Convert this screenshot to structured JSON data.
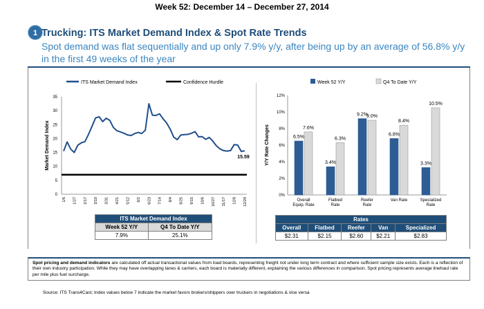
{
  "header": {
    "week": "Week 52: December 14 – December 27, 2014",
    "badge": "1",
    "title": "Trucking: ITS Market Demand Index & Spot Rate Trends",
    "subtitle": "Spot demand was flat sequentially and up only 7.9% y/y, after being up by an average of 56.8% y/y in the first 49 weeks of the year"
  },
  "colors": {
    "navy": "#1f4e79",
    "bar_blue": "#2e5c94",
    "bar_gray": "#d9d9d9",
    "line_blue": "#1f4e8c"
  },
  "chart_data": [
    {
      "type": "line",
      "ylabel": "Market Demand Index",
      "ylim": [
        0,
        35
      ],
      "yticks": [
        "0",
        "5",
        "10",
        "15",
        "20",
        "25",
        "30",
        "35"
      ],
      "x_tick_labels": [
        "1/6",
        "1/27",
        "2/17",
        "3/10",
        "3/31",
        "4/21",
        "5/12",
        "6/2",
        "6/23",
        "7/14",
        "8/4",
        "8/25",
        "9/15",
        "10/6",
        "10/27",
        "11/17",
        "12/8",
        "12/29"
      ],
      "series": [
        {
          "name": "ITS Market Demand Index",
          "values": [
            15.5,
            18.8,
            16.2,
            15.0,
            17.6,
            18.5,
            18.9,
            21.5,
            24.4,
            27.4,
            27.8,
            26.1,
            27.3,
            26.5,
            24.0,
            22.8,
            22.4,
            21.9,
            21.3,
            21.1,
            21.8,
            22.2,
            21.8,
            23.0,
            32.5,
            28.4,
            28.3,
            28.9,
            27.1,
            25.6,
            23.4,
            20.5,
            19.6,
            21.3,
            21.4,
            21.5,
            21.9,
            22.5,
            20.6,
            20.7,
            19.7,
            20.4,
            19.1,
            17.4,
            16.3,
            15.7,
            15.5,
            15.7,
            17.8,
            17.7,
            15.4,
            15.59
          ]
        },
        {
          "name": "Confidence Hurdle",
          "values": [
            7,
            7
          ]
        }
      ],
      "end_label": "15.59"
    },
    {
      "type": "bar",
      "ylabel": "Y/Y Rate Changes",
      "ylim": [
        0,
        12
      ],
      "yticks": [
        "0%",
        "2%",
        "4%",
        "6%",
        "8%",
        "10%",
        "12%"
      ],
      "categories": [
        [
          "Overall",
          "Equip. Rate"
        ],
        [
          "Flatbed",
          "Rate"
        ],
        [
          "Reefer",
          "Rate"
        ],
        [
          "Van Rate"
        ],
        [
          "Specialized",
          "Rate"
        ]
      ],
      "series": [
        {
          "name": "Week 52 Y/Y",
          "values": [
            6.5,
            3.4,
            9.2,
            6.8,
            3.3
          ],
          "labels": [
            "6.5%",
            "3.4%",
            "9.2%",
            "6.8%",
            "3.3%"
          ]
        },
        {
          "name": "Q4 To Date Y/Y",
          "values": [
            7.6,
            6.3,
            9.0,
            8.4,
            10.5
          ],
          "labels": [
            "7.6%",
            "6.3%",
            "9.0%",
            "8.4%",
            "10.5%"
          ]
        }
      ]
    }
  ],
  "index_table": {
    "title": "ITS Market Demand Index",
    "headers": [
      "Week 52 Y/Y",
      "Q4 To Date Y/Y"
    ],
    "values": [
      "7.9%",
      "25.1%"
    ]
  },
  "rates_table": {
    "title": "Rates",
    "headers": [
      "Overall",
      "Flatbed",
      "Reefer",
      "Van",
      "Specialized"
    ],
    "values": [
      "$2.31",
      "$2.15",
      "$2.60",
      "$2.21",
      "$2.83"
    ]
  },
  "notes": {
    "bold": "Spot pricing and demand indicators",
    "text": " are calculated off actual transactional values from load boards, representing freight not under long term contract and where sufficient sample size exists. Each is a reflection of their own industry participation. While they may have overlapping lanes & carriers, each board is materially different, explaining the various differences in comparison. Spot pricing represents average linehaul rate per mile plus fuel surcharge."
  },
  "source": "Source: ITS Trans4Cast; Index values below 7 indicate the market favors brokers/shippers over truckers in negotiations & vice versa"
}
